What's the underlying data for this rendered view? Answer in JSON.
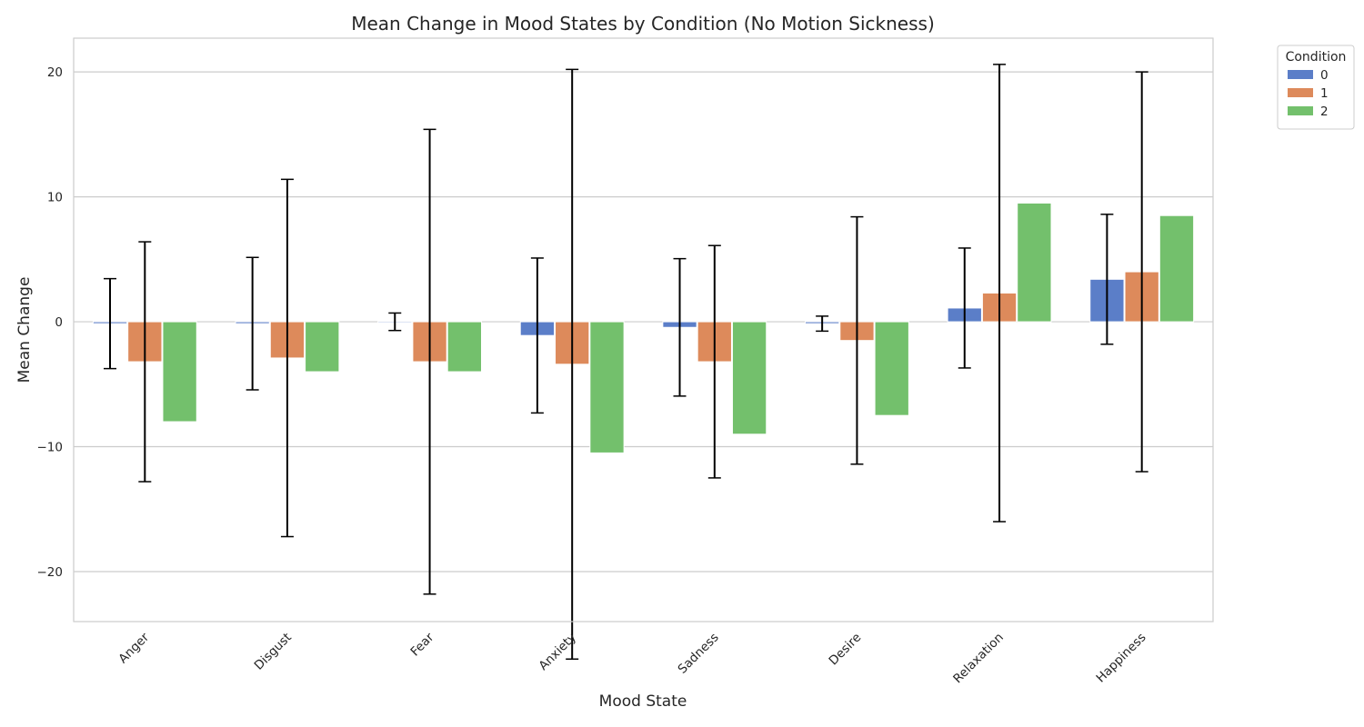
{
  "chart_data": {
    "type": "bar",
    "title": "Mean Change in Mood States by Condition (No Motion Sickness)",
    "xlabel": "Mood State",
    "ylabel": "Mean Change",
    "categories": [
      "Anger",
      "Disgust",
      "Fear",
      "Anxiety",
      "Sadness",
      "Desire",
      "Relaxation",
      "Happiness"
    ],
    "ylim": [
      -24,
      22.7
    ],
    "yticks": [
      -20,
      -10,
      0,
      10,
      20
    ],
    "grid": true,
    "legend": {
      "title": "Condition",
      "placement": "upper-right-outside"
    },
    "series": [
      {
        "name": "0",
        "color": "#5b7ec8",
        "values": [
          -0.15,
          -0.15,
          0,
          -1.1,
          -0.45,
          -0.15,
          1.1,
          3.4
        ],
        "error": [
          3.6,
          5.3,
          0.7,
          6.2,
          5.5,
          0.6,
          4.8,
          5.2
        ]
      },
      {
        "name": "1",
        "color": "#dd8a5b",
        "values": [
          -3.2,
          -2.9,
          -3.2,
          -3.4,
          -3.2,
          -1.5,
          2.3,
          4.0
        ],
        "error": [
          9.6,
          14.3,
          18.6,
          23.6,
          9.3,
          9.9,
          18.3,
          16.0
        ]
      },
      {
        "name": "2",
        "color": "#73c06c",
        "values": [
          -8.0,
          -4.0,
          -4.0,
          -10.5,
          -9.0,
          -7.5,
          9.5,
          8.5
        ],
        "error": [
          0,
          0,
          0,
          0,
          0,
          0,
          0,
          0
        ]
      }
    ]
  }
}
